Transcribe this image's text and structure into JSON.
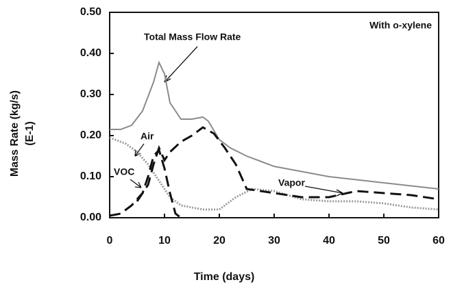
{
  "chart_data": {
    "type": "line",
    "xlabel": "Time (days)",
    "ylabel": "Mass Rate (kg/s)",
    "ylabel_unit": "(E-1)",
    "annotations": [
      "Total Mass Flow Rate",
      "With o-xylene",
      "Air",
      "VOC",
      "Vapor"
    ],
    "xlim": [
      0,
      60
    ],
    "xticks": [
      0,
      10,
      20,
      30,
      40,
      50,
      60
    ],
    "ylim": [
      0,
      0.5
    ],
    "yticks": [
      {
        "value": 0,
        "label": "0.00"
      },
      {
        "value": 0.1,
        "label": "0.10"
      },
      {
        "value": 0.2,
        "label": "0.20"
      },
      {
        "value": 0.3,
        "label": "0.30"
      },
      {
        "value": 0.4,
        "label": "0.40"
      },
      {
        "value": 0.5,
        "label": "0.50"
      }
    ],
    "series": [
      {
        "name": "Total Mass Flow Rate",
        "color": "#8a8a8a",
        "style": "solid",
        "x": [
          0,
          2,
          4,
          6,
          8,
          9,
          10,
          11,
          13,
          15,
          17,
          18,
          20,
          22,
          25,
          30,
          40,
          50,
          60
        ],
        "values": [
          0.215,
          0.215,
          0.225,
          0.26,
          0.33,
          0.378,
          0.35,
          0.28,
          0.24,
          0.24,
          0.245,
          0.235,
          0.19,
          0.17,
          0.15,
          0.125,
          0.1,
          0.085,
          0.07
        ]
      },
      {
        "name": "Air",
        "color": "#9a9a9a",
        "style": "dotted",
        "x": [
          0,
          3,
          5,
          7,
          9,
          11,
          13,
          17,
          20,
          23,
          26,
          30,
          35,
          40,
          45,
          50,
          55,
          60
        ],
        "values": [
          0.195,
          0.18,
          0.16,
          0.13,
          0.09,
          0.05,
          0.03,
          0.02,
          0.02,
          0.05,
          0.07,
          0.065,
          0.045,
          0.04,
          0.04,
          0.035,
          0.025,
          0.02
        ]
      },
      {
        "name": "Vapor",
        "color": "#111111",
        "style": "dashed",
        "x": [
          5,
          7,
          8,
          9,
          10,
          11,
          13,
          15,
          17,
          19,
          21,
          23,
          25,
          30,
          35,
          40,
          45,
          50,
          55,
          60
        ],
        "values": [
          0.04,
          0.08,
          0.13,
          0.17,
          0.14,
          0.16,
          0.185,
          0.2,
          0.22,
          0.205,
          0.17,
          0.13,
          0.07,
          0.06,
          0.05,
          0.05,
          0.065,
          0.06,
          0.055,
          0.045
        ]
      },
      {
        "name": "VOC",
        "color": "#111111",
        "style": "dashed",
        "x": [
          0,
          2,
          4,
          6,
          7,
          8,
          9,
          10,
          11,
          12,
          13
        ],
        "values": [
          0.005,
          0.01,
          0.03,
          0.06,
          0.1,
          0.15,
          0.165,
          0.12,
          0.06,
          0.01,
          0
        ]
      }
    ]
  }
}
